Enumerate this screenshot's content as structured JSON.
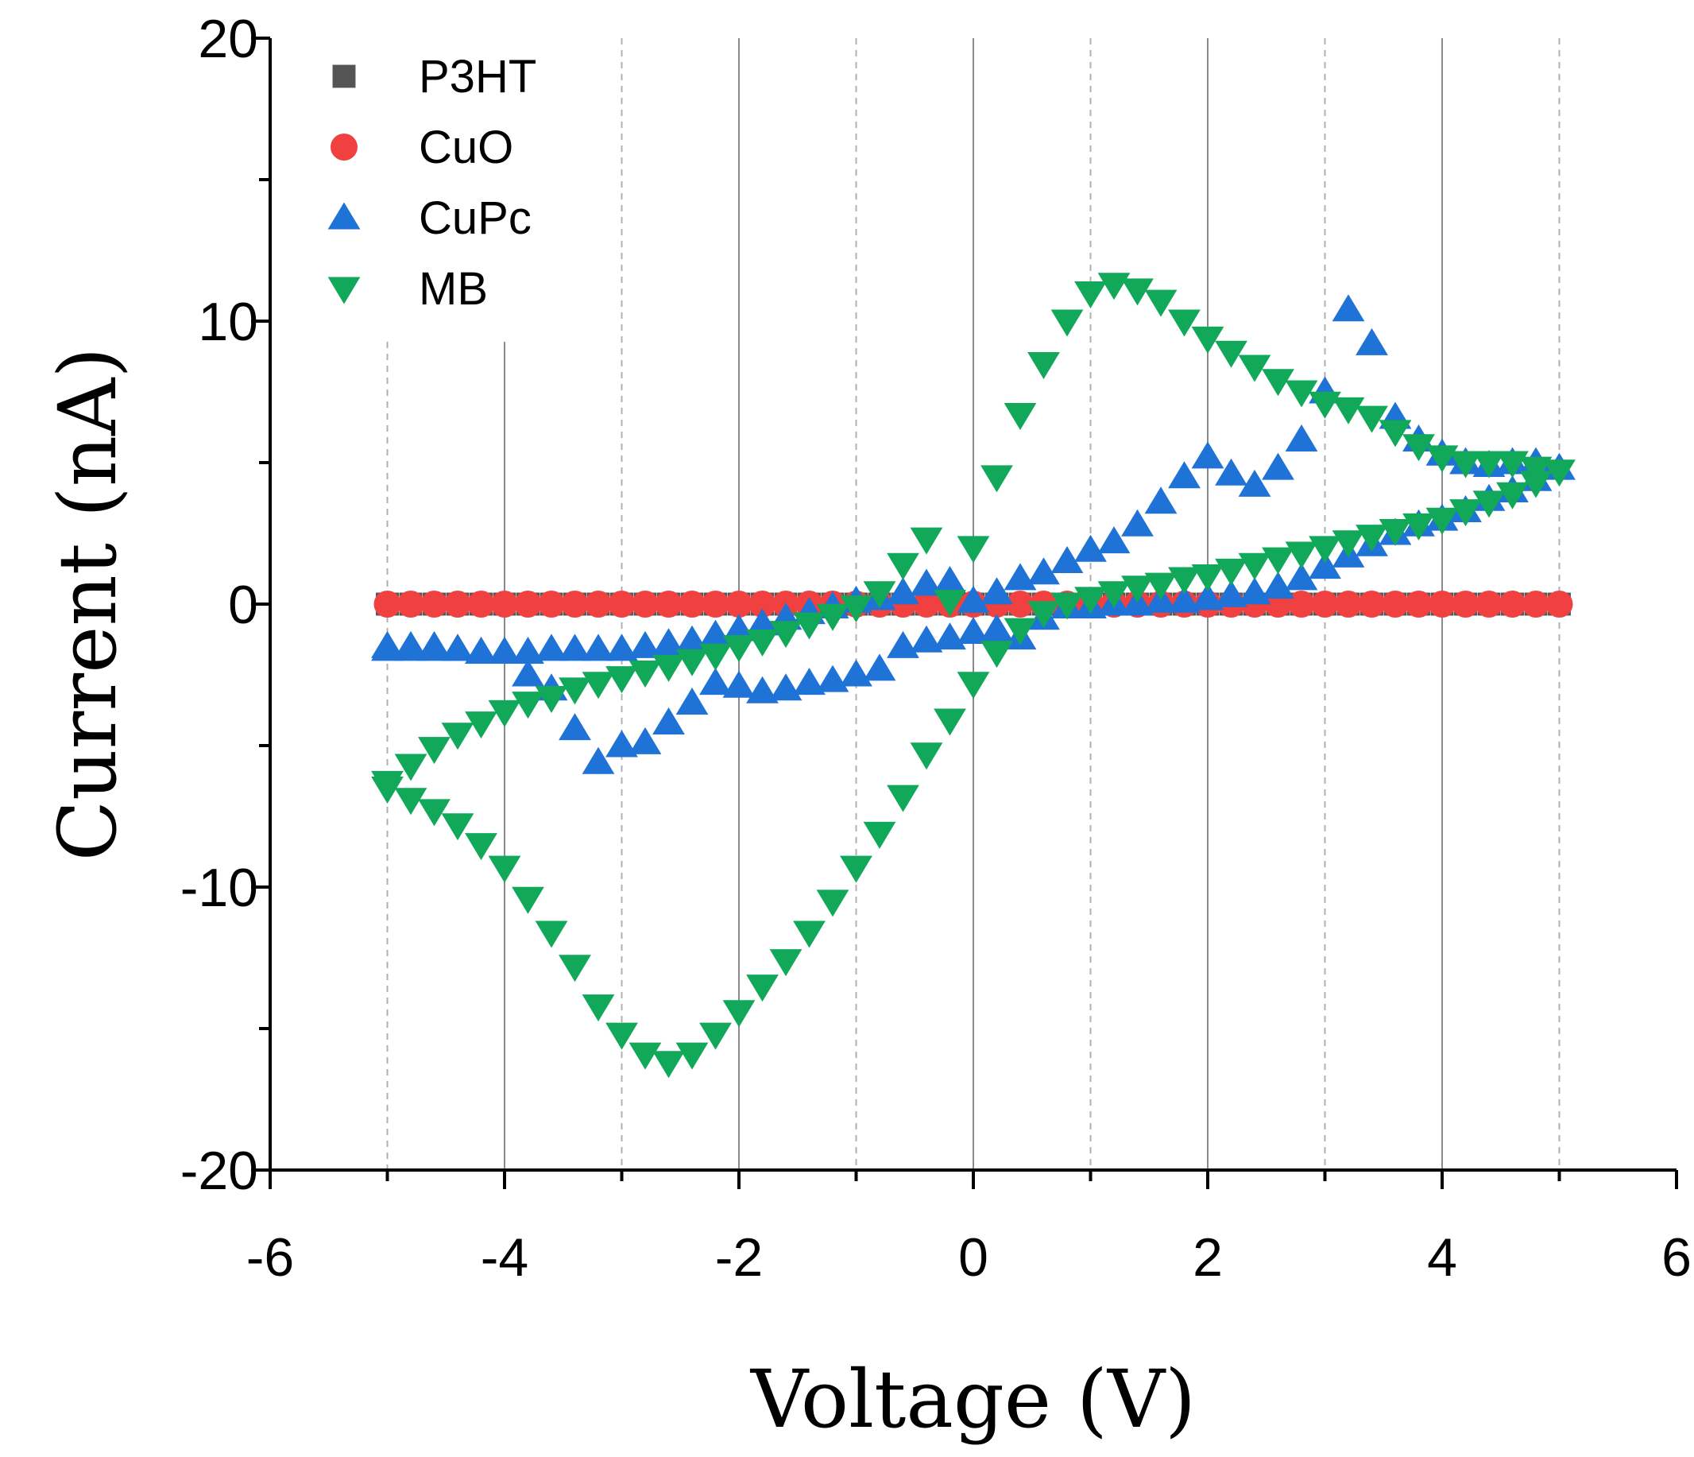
{
  "chart_data": {
    "type": "scatter",
    "title": "",
    "xlabel": "Voltage (V)",
    "ylabel": "Current (nA)",
    "xlim": [
      -6,
      6
    ],
    "ylim": [
      -20,
      20
    ],
    "x_ticks": [
      -6,
      -4,
      -2,
      0,
      2,
      4,
      6
    ],
    "y_ticks": [
      -20,
      -10,
      0,
      10,
      20
    ],
    "x_tick_labels": [
      "-6",
      "-4",
      "-2",
      "0",
      "2",
      "4",
      "6"
    ],
    "y_tick_labels": [
      "-20",
      "-10",
      "0",
      "10",
      "20"
    ],
    "grid": {
      "vertical_solid": [
        -4,
        -2,
        0,
        2,
        4
      ],
      "vertical_dashed": [
        -5,
        -3,
        -1,
        1,
        3,
        5
      ],
      "horizontal": false
    },
    "legend_position": "top-left",
    "series": [
      {
        "name": "P3HT",
        "marker": "square",
        "color": "#555555",
        "x": [
          -5.0,
          -4.8,
          -4.6,
          -4.4,
          -4.2,
          -4.0,
          -3.8,
          -3.6,
          -3.4,
          -3.2,
          -3.0,
          -2.8,
          -2.6,
          -2.4,
          -2.2,
          -2.0,
          -1.8,
          -1.6,
          -1.4,
          -1.2,
          -1.0,
          -0.8,
          -0.6,
          -0.4,
          -0.2,
          0.0,
          0.2,
          0.4,
          0.6,
          0.8,
          1.0,
          1.2,
          1.4,
          1.6,
          1.8,
          2.0,
          2.2,
          2.4,
          2.6,
          2.8,
          3.0,
          3.2,
          3.4,
          3.6,
          3.8,
          4.0,
          4.2,
          4.4,
          4.6,
          4.8,
          5.0
        ],
        "y": [
          0,
          0,
          0,
          0,
          0,
          0,
          0,
          0,
          0,
          0,
          0,
          0,
          0,
          0,
          0,
          0,
          0,
          0,
          0,
          0,
          0,
          0,
          0,
          0,
          0,
          0,
          0,
          0,
          0,
          0,
          0,
          0,
          0,
          0,
          0,
          0,
          0,
          0,
          0,
          0,
          0,
          0,
          0,
          0,
          0,
          0,
          0,
          0,
          0,
          0,
          0
        ]
      },
      {
        "name": "CuO",
        "marker": "circle",
        "color": "#f04040",
        "x": [
          -5.0,
          -4.8,
          -4.6,
          -4.4,
          -4.2,
          -4.0,
          -3.8,
          -3.6,
          -3.4,
          -3.2,
          -3.0,
          -2.8,
          -2.6,
          -2.4,
          -2.2,
          -2.0,
          -1.8,
          -1.6,
          -1.4,
          -1.2,
          -1.0,
          -0.8,
          -0.6,
          -0.4,
          -0.2,
          0.0,
          0.2,
          0.4,
          0.6,
          0.8,
          1.0,
          1.2,
          1.4,
          1.6,
          1.8,
          2.0,
          2.2,
          2.4,
          2.6,
          2.8,
          3.0,
          3.2,
          3.4,
          3.6,
          3.8,
          4.0,
          4.2,
          4.4,
          4.6,
          4.8,
          5.0
        ],
        "y": [
          0,
          0,
          0,
          0,
          0,
          0,
          0,
          0,
          0,
          0,
          0,
          0,
          0,
          0,
          0,
          0,
          0,
          0,
          0,
          0,
          0,
          0,
          0,
          0,
          0,
          0,
          0,
          0,
          0,
          0,
          0,
          0,
          0,
          0,
          0,
          0,
          0,
          0,
          0,
          0,
          0,
          0,
          0,
          0,
          0,
          0,
          0,
          0,
          0,
          0,
          0
        ]
      },
      {
        "name": "CuPc",
        "marker": "triangle-up",
        "color": "#1f72d6",
        "x": [
          -5.0,
          -4.8,
          -4.6,
          -4.4,
          -4.2,
          -4.0,
          -3.8,
          -3.6,
          -3.4,
          -3.2,
          -3.0,
          -2.8,
          -2.6,
          -2.4,
          -2.2,
          -2.0,
          -1.8,
          -1.6,
          -1.4,
          -1.2,
          -1.0,
          -0.8,
          -0.6,
          -0.4,
          -0.2,
          0.0,
          0.2,
          0.4,
          0.6,
          0.8,
          1.0,
          1.2,
          1.4,
          1.6,
          1.8,
          2.0,
          2.2,
          2.4,
          2.6,
          2.8,
          3.0,
          3.2,
          3.4,
          3.6,
          3.8,
          4.0,
          4.2,
          4.4,
          4.6,
          4.8,
          5.0,
          4.8,
          4.6,
          4.4,
          4.2,
          4.0,
          3.8,
          3.6,
          3.4,
          3.2,
          3.0,
          2.8,
          2.6,
          2.4,
          2.2,
          2.0,
          1.8,
          1.6,
          1.4,
          1.2,
          1.0,
          0.8,
          0.6,
          0.4,
          0.2,
          0.0,
          -0.2,
          -0.4,
          -0.6,
          -0.8,
          -1.0,
          -1.2,
          -1.4,
          -1.6,
          -1.8,
          -2.0,
          -2.2,
          -2.4,
          -2.6,
          -2.8,
          -3.0,
          -3.2,
          -3.4,
          -3.6,
          -3.8,
          -4.0,
          -4.2,
          -4.4,
          -4.6,
          -4.8,
          -5.0
        ],
        "y": [
          -1.5,
          -1.5,
          -1.5,
          -1.6,
          -1.7,
          -1.7,
          -2.5,
          -3.0,
          -4.4,
          -5.6,
          -5.0,
          -4.9,
          -4.2,
          -3.5,
          -2.8,
          -2.9,
          -3.1,
          -3.0,
          -2.8,
          -2.7,
          -2.5,
          -2.3,
          -1.5,
          -1.3,
          -1.2,
          -1.0,
          -0.9,
          -1.2,
          -0.5,
          -0.1,
          -0.1,
          0.0,
          0.0,
          0.1,
          0.1,
          0.2,
          0.3,
          0.4,
          0.6,
          0.9,
          1.3,
          1.7,
          2.1,
          2.5,
          2.8,
          3.0,
          3.3,
          3.7,
          4.0,
          4.4,
          4.8,
          5.0,
          5.0,
          4.9,
          5.0,
          5.3,
          5.8,
          6.6,
          9.2,
          10.4,
          7.5,
          5.8,
          4.8,
          4.2,
          4.6,
          5.2,
          4.5,
          3.6,
          2.8,
          2.2,
          1.9,
          1.5,
          1.1,
          0.9,
          0.4,
          0.1,
          0.8,
          0.7,
          0.4,
          0.2,
          0.1,
          -0.1,
          -0.3,
          -0.5,
          -0.7,
          -0.9,
          -1.1,
          -1.3,
          -1.4,
          -1.5,
          -1.6,
          -1.6,
          -1.6,
          -1.6,
          -1.7,
          -1.7,
          -1.7,
          -1.6,
          -1.6,
          -1.6,
          -1.6
        ]
      },
      {
        "name": "MB",
        "marker": "triangle-down",
        "color": "#12a85a",
        "x": [
          -5.0,
          -4.8,
          -4.6,
          -4.4,
          -4.2,
          -4.0,
          -3.8,
          -3.6,
          -3.4,
          -3.2,
          -3.0,
          -2.8,
          -2.6,
          -2.4,
          -2.2,
          -2.0,
          -1.8,
          -1.6,
          -1.4,
          -1.2,
          -1.0,
          -0.8,
          -0.6,
          -0.4,
          -0.2,
          0.0,
          0.2,
          0.4,
          0.6,
          0.8,
          1.0,
          1.2,
          1.4,
          1.6,
          1.8,
          2.0,
          2.2,
          2.4,
          2.6,
          2.8,
          3.0,
          3.2,
          3.4,
          3.6,
          3.8,
          4.0,
          4.2,
          4.4,
          4.6,
          4.8,
          5.0,
          4.8,
          4.6,
          4.4,
          4.2,
          4.0,
          3.8,
          3.6,
          3.4,
          3.2,
          3.0,
          2.8,
          2.6,
          2.4,
          2.2,
          2.0,
          1.8,
          1.6,
          1.4,
          1.2,
          1.0,
          0.8,
          0.6,
          0.4,
          0.2,
          0.0,
          -0.2,
          -0.4,
          -0.6,
          -0.8,
          -1.0,
          -1.2,
          -1.4,
          -1.6,
          -1.8,
          -2.0,
          -2.2,
          -2.4,
          -2.6,
          -2.8,
          -3.0,
          -3.2,
          -3.4,
          -3.6,
          -3.8,
          -4.0,
          -4.2,
          -4.4,
          -4.6,
          -4.8,
          -5.0
        ],
        "y": [
          -6.5,
          -6.9,
          -7.3,
          -7.8,
          -8.5,
          -9.3,
          -10.4,
          -11.6,
          -12.8,
          -14.2,
          -15.2,
          -15.9,
          -16.2,
          -15.9,
          -15.2,
          -14.4,
          -13.5,
          -12.6,
          -11.6,
          -10.5,
          -9.3,
          -8.1,
          -6.8,
          -5.3,
          -4.1,
          -2.8,
          -1.7,
          -0.9,
          -0.3,
          0.0,
          0.2,
          0.4,
          0.6,
          0.7,
          0.9,
          1.0,
          1.2,
          1.4,
          1.6,
          1.8,
          2.0,
          2.2,
          2.4,
          2.6,
          2.8,
          3.0,
          3.3,
          3.6,
          3.9,
          4.3,
          4.7,
          4.8,
          5.0,
          5.0,
          5.0,
          5.2,
          5.6,
          6.1,
          6.6,
          6.9,
          7.1,
          7.5,
          7.9,
          8.4,
          8.9,
          9.4,
          10.0,
          10.7,
          11.1,
          11.3,
          11.0,
          10.0,
          8.5,
          6.7,
          4.5,
          2.0,
          0.1,
          2.3,
          1.4,
          0.4,
          -0.1,
          -0.4,
          -0.7,
          -1.0,
          -1.3,
          -1.5,
          -1.8,
          -2.0,
          -2.2,
          -2.4,
          -2.6,
          -2.8,
          -3.0,
          -3.3,
          -3.5,
          -3.8,
          -4.2,
          -4.6,
          -5.1,
          -5.7,
          -6.3
        ]
      }
    ]
  }
}
